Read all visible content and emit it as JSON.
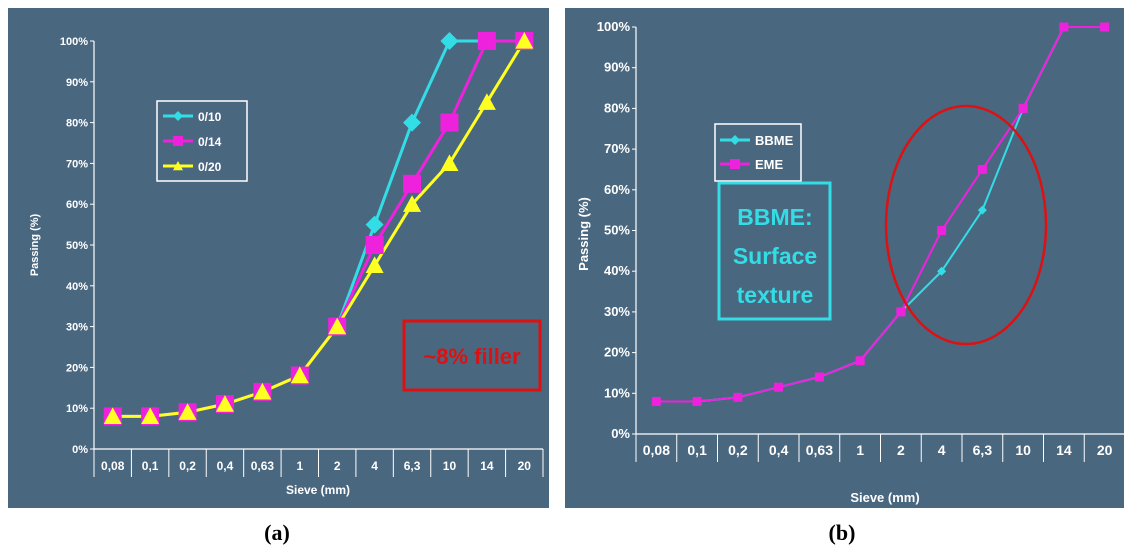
{
  "colors": {
    "panel": "#4a6780",
    "cyan": "#33dde6",
    "magenta": "#ee22dd",
    "yellow": "#ffff22",
    "red": "#dd1111"
  },
  "chart_data": [
    {
      "type": "line",
      "panel_label": "(a)",
      "xlabel": "Sieve (mm)",
      "ylabel": "Passing (%)",
      "categories": [
        "0,08",
        "0,1",
        "0,2",
        "0,4",
        "0,63",
        "1",
        "2",
        "4",
        "6,3",
        "10",
        "14",
        "20"
      ],
      "y_ticks": [
        "0%",
        "10%",
        "20%",
        "30%",
        "40%",
        "50%",
        "60%",
        "70%",
        "80%",
        "90%",
        "100%"
      ],
      "ylim": [
        0,
        100
      ],
      "legend_position": "top-left",
      "series": [
        {
          "name": "0/10",
          "color": "cyan",
          "marker": "diamond",
          "values": [
            8,
            8,
            9,
            11,
            14,
            18,
            30,
            55,
            80,
            100,
            100,
            100
          ]
        },
        {
          "name": "0/14",
          "color": "magenta",
          "marker": "square",
          "values": [
            8,
            8,
            9,
            11,
            14,
            18,
            30,
            50,
            65,
            80,
            100,
            100
          ]
        },
        {
          "name": "0/20",
          "color": "yellow",
          "marker": "triangle",
          "values": [
            8,
            8,
            9,
            11,
            14,
            18,
            30,
            45,
            60,
            70,
            85,
            100
          ]
        }
      ],
      "annotation": "~8% filler"
    },
    {
      "type": "line",
      "panel_label": "(b)",
      "xlabel": "Sieve (mm)",
      "ylabel": "Passing (%)",
      "categories": [
        "0,08",
        "0,1",
        "0,2",
        "0,4",
        "0,63",
        "1",
        "2",
        "4",
        "6,3",
        "10",
        "14",
        "20"
      ],
      "y_ticks": [
        "0%",
        "10%",
        "20%",
        "30%",
        "40%",
        "50%",
        "60%",
        "70%",
        "80%",
        "90%",
        "100%"
      ],
      "ylim": [
        0,
        100
      ],
      "legend_position": "top-left",
      "series": [
        {
          "name": "BBME",
          "color": "cyan",
          "marker": "diamond",
          "values": [
            8,
            8,
            9,
            11.5,
            14,
            18,
            30,
            40,
            55,
            80,
            100,
            100
          ]
        },
        {
          "name": "EME",
          "color": "magenta",
          "marker": "square",
          "values": [
            8,
            8,
            9,
            11.5,
            14,
            18,
            30,
            50,
            65,
            80,
            100,
            100
          ]
        }
      ],
      "annotation_lines": [
        "BBME:",
        "Surface",
        "texture"
      ]
    }
  ]
}
